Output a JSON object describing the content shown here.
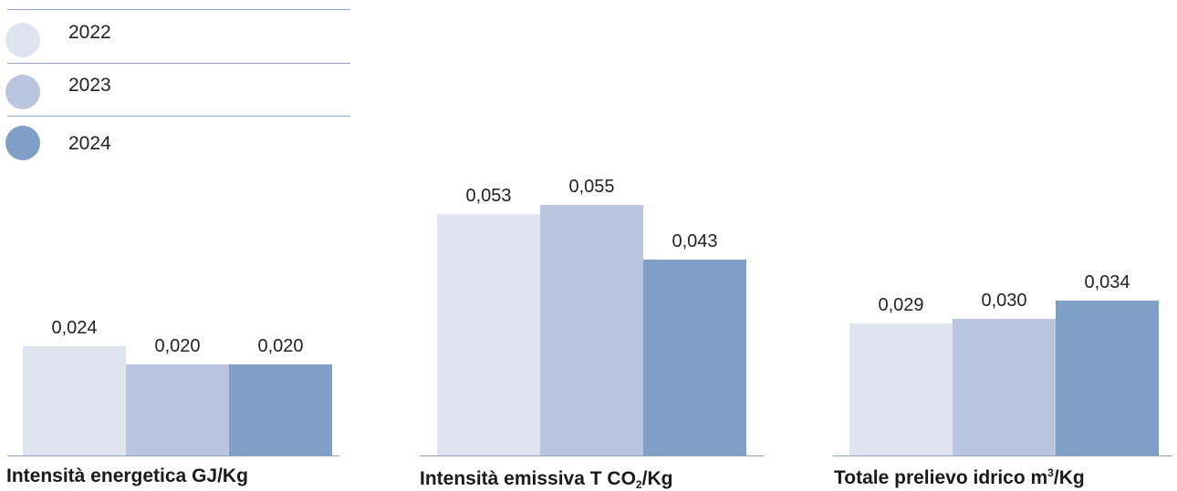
{
  "legend": {
    "items": [
      {
        "label": "2022",
        "color": "#dfe4f0"
      },
      {
        "label": "2023",
        "color": "#bac6df"
      },
      {
        "label": "2024",
        "color": "#809fc7"
      }
    ]
  },
  "colors": {
    "axis": "#8fa3c4",
    "value_text": "#222222"
  },
  "chart_data": [
    {
      "type": "bar",
      "title": "Intensità energetica GJ/Kg",
      "title_parts": {
        "main": "Intensità energetica GJ/Kg"
      },
      "series": [
        {
          "name": "2022",
          "values": [
            0.024
          ],
          "labels": [
            "0,024"
          ]
        },
        {
          "name": "2023",
          "values": [
            0.02
          ],
          "labels": [
            "0,020"
          ]
        },
        {
          "name": "2024",
          "values": [
            0.02
          ],
          "labels": [
            "0,020"
          ]
        }
      ]
    },
    {
      "type": "bar",
      "title": "Intensità emissiva T CO2/Kg",
      "title_parts": {
        "pre": "Intensità emissiva T CO",
        "sub": "2",
        "post": "/Kg"
      },
      "series": [
        {
          "name": "2022",
          "values": [
            0.053
          ],
          "labels": [
            "0,053"
          ]
        },
        {
          "name": "2023",
          "values": [
            0.055
          ],
          "labels": [
            "0,055"
          ]
        },
        {
          "name": "2024",
          "values": [
            0.043
          ],
          "labels": [
            "0,043"
          ]
        }
      ]
    },
    {
      "type": "bar",
      "title": "Totale prelievo idrico m3/Kg",
      "title_parts": {
        "pre": "Totale prelievo idrico m",
        "sup": "3",
        "post": "/Kg"
      },
      "series": [
        {
          "name": "2022",
          "values": [
            0.029
          ],
          "labels": [
            "0,029"
          ]
        },
        {
          "name": "2023",
          "values": [
            0.03
          ],
          "labels": [
            "0,030"
          ]
        },
        {
          "name": "2024",
          "values": [
            0.034
          ],
          "labels": [
            "0,034"
          ]
        }
      ]
    }
  ]
}
